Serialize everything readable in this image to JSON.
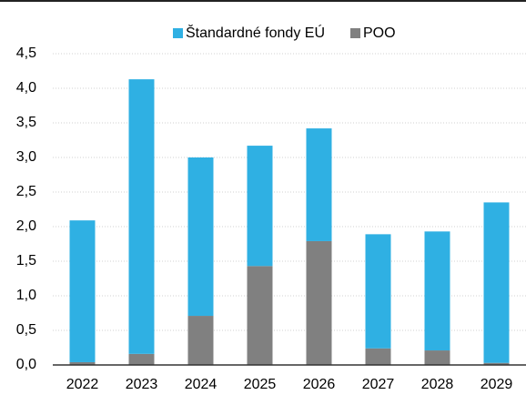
{
  "chart_data": {
    "type": "stacked_bar",
    "categories": [
      "2022",
      "2023",
      "2024",
      "2025",
      "2026",
      "2027",
      "2028",
      "2029"
    ],
    "series": [
      {
        "name": "Štandardné fondy EÚ",
        "color": "#2fb0e3",
        "values": [
          2.05,
          3.97,
          2.29,
          1.74,
          1.63,
          1.65,
          1.72,
          2.32
        ]
      },
      {
        "name": "POO",
        "color": "#808080",
        "values": [
          0.04,
          0.16,
          0.71,
          1.43,
          1.79,
          0.24,
          0.21,
          0.03
        ]
      }
    ],
    "ylim": [
      0,
      4.5
    ],
    "yticks": [
      {
        "value": 0,
        "label": "0,0"
      },
      {
        "value": 0.5,
        "label": "0,5"
      },
      {
        "value": 1,
        "label": "1,0"
      },
      {
        "value": 1.5,
        "label": "1,5"
      },
      {
        "value": 2,
        "label": "2,0"
      },
      {
        "value": 2.5,
        "label": "2,5"
      },
      {
        "value": 3,
        "label": "3,0"
      },
      {
        "value": 3.5,
        "label": "3,5"
      },
      {
        "value": 4,
        "label": "4,0"
      },
      {
        "value": 4.5,
        "label": "4,5"
      }
    ],
    "grid": true,
    "legend": "top"
  }
}
